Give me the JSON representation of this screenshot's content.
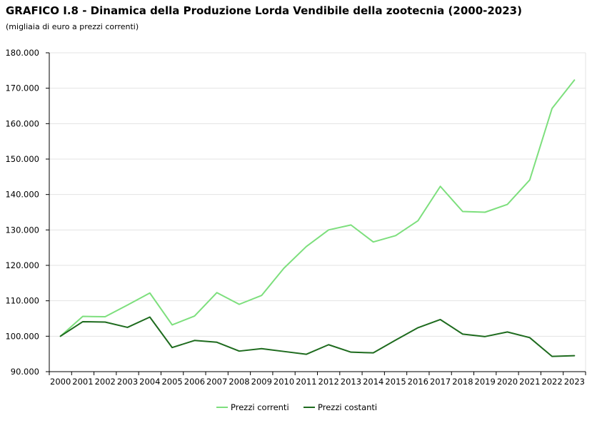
{
  "header": {
    "title": "GRAFICO I.8 - Dinamica della Produzione Lorda Vendibile della zootecnia (2000-2023)",
    "subtitle": "(migliaia di euro a prezzi correnti)"
  },
  "chart_data": {
    "type": "line",
    "title": "GRAFICO I.8 - Dinamica della Produzione Lorda Vendibile della zootecnia (2000-2023)",
    "subtitle": "(migliaia di euro a prezzi correnti)",
    "xlabel": "",
    "ylabel": "",
    "categories": [
      "2000",
      "2001",
      "2002",
      "2003",
      "2004",
      "2005",
      "2006",
      "2007",
      "2008",
      "2009",
      "2010",
      "2011",
      "2012",
      "2013",
      "2014",
      "2015",
      "2016",
      "2017",
      "2018",
      "2019",
      "2020",
      "2021",
      "2022",
      "2023"
    ],
    "ylim": [
      90000,
      180000
    ],
    "yticks": [
      90000,
      100000,
      110000,
      120000,
      130000,
      140000,
      150000,
      160000,
      170000,
      180000
    ],
    "ytick_labels": [
      "90.000",
      "100.000",
      "110.000",
      "120.000",
      "130.000",
      "140.000",
      "150.000",
      "160.000",
      "170.000",
      "180.000"
    ],
    "grid": true,
    "legend_position": "bottom",
    "series": [
      {
        "name": "Prezzi correnti",
        "color": "#7ddf7d",
        "values": [
          100000,
          105600,
          105500,
          108800,
          112200,
          103200,
          105700,
          112300,
          109000,
          111500,
          119200,
          125300,
          130000,
          131400,
          126600,
          128400,
          132600,
          142300,
          135200,
          135000,
          137200,
          144100,
          164300,
          172300
        ]
      },
      {
        "name": "Prezzi costanti",
        "color": "#1e6b1e",
        "values": [
          100000,
          104100,
          104000,
          102500,
          105400,
          96800,
          98800,
          98300,
          95800,
          96500,
          95700,
          94900,
          97600,
          95500,
          95300,
          98900,
          102400,
          104700,
          100600,
          99900,
          101200,
          99600,
          94300,
          94500
        ]
      }
    ]
  }
}
